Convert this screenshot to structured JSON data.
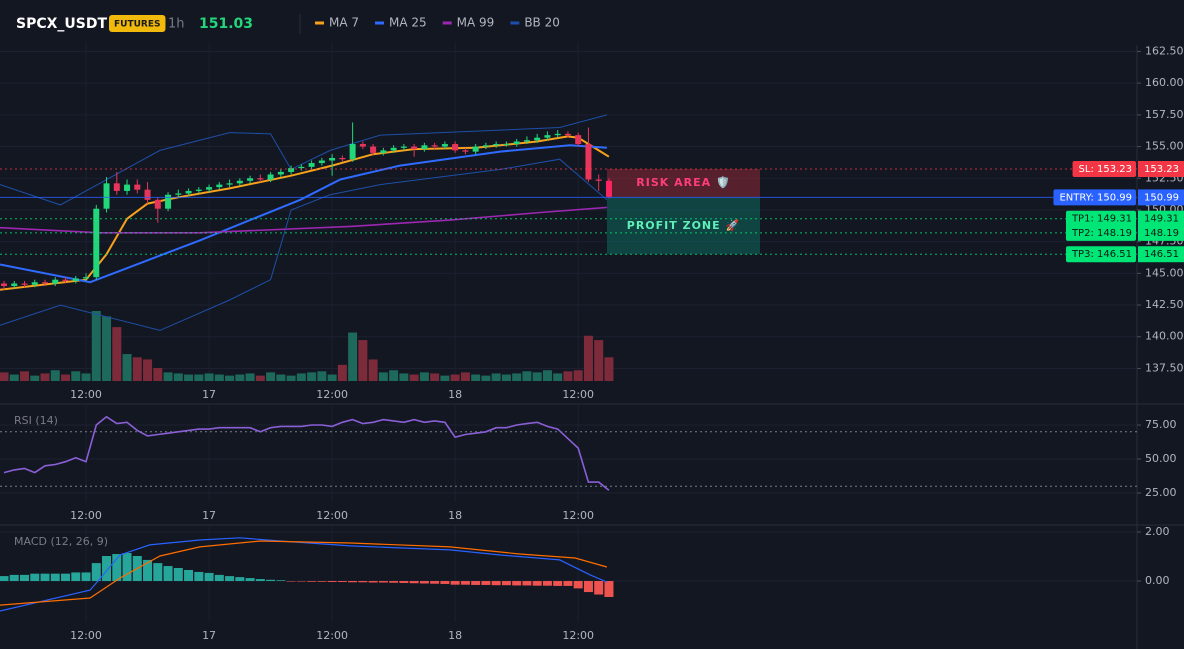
{
  "header": {
    "symbol": "SPCX_USDT",
    "badge": "FUTURES",
    "interval": "1h",
    "price": 151.03
  },
  "chart_data": [
    {
      "type": "candlestick",
      "open": [
        144.2,
        144.0,
        144.2,
        144.1,
        144.3,
        144.2,
        144.5,
        144.4,
        144.6,
        144.7,
        150.1,
        152.1,
        151.5,
        152.0,
        151.6,
        150.8,
        150.1,
        151.2,
        151.3,
        151.5,
        151.6,
        151.8,
        152.0,
        152.1,
        152.3,
        152.5,
        152.4,
        152.8,
        153.0,
        153.3,
        153.4,
        153.7,
        153.9,
        154.1,
        154.0,
        155.2,
        155.0,
        154.5,
        154.7,
        154.9,
        155.0,
        154.8,
        155.1,
        155.0,
        155.2,
        154.7,
        154.6,
        155.0,
        155.1,
        155.2,
        155.2,
        155.4,
        155.5,
        155.7,
        155.9,
        156.0,
        155.9,
        155.2,
        152.4,
        152.3
      ],
      "high": [
        144.4,
        144.4,
        144.4,
        144.5,
        144.5,
        144.7,
        144.7,
        144.8,
        145.0,
        150.4,
        152.6,
        153.0,
        152.4,
        152.4,
        152.2,
        151.0,
        151.4,
        151.6,
        151.7,
        151.8,
        152.0,
        152.2,
        152.4,
        152.5,
        152.7,
        152.8,
        153.0,
        153.2,
        153.5,
        153.6,
        153.9,
        154.1,
        154.4,
        154.3,
        156.9,
        155.4,
        155.2,
        154.9,
        155.1,
        155.2,
        155.2,
        155.3,
        155.3,
        155.4,
        155.4,
        154.9,
        155.2,
        155.3,
        155.4,
        155.4,
        155.6,
        155.8,
        156.0,
        156.2,
        156.3,
        156.2,
        156.1,
        156.5,
        152.8,
        152.5
      ],
      "low": [
        143.7,
        143.8,
        143.9,
        143.9,
        144.0,
        144.0,
        144.2,
        144.2,
        144.4,
        144.5,
        149.8,
        151.2,
        151.2,
        151.3,
        150.5,
        149.0,
        149.9,
        151.0,
        151.1,
        151.3,
        151.4,
        151.6,
        151.8,
        151.9,
        152.1,
        152.2,
        152.2,
        152.6,
        152.8,
        153.1,
        153.2,
        153.5,
        152.7,
        153.8,
        153.8,
        154.8,
        154.3,
        154.3,
        154.5,
        154.7,
        154.2,
        154.6,
        154.8,
        154.8,
        154.5,
        154.4,
        154.4,
        154.8,
        154.9,
        155.0,
        155.0,
        155.2,
        155.3,
        155.5,
        155.7,
        155.7,
        155.0,
        152.2,
        151.5,
        150.9
      ],
      "close": [
        144.0,
        144.2,
        144.1,
        144.3,
        144.2,
        144.5,
        144.4,
        144.6,
        144.7,
        150.1,
        152.1,
        151.5,
        152.0,
        151.6,
        150.8,
        150.1,
        151.2,
        151.3,
        151.5,
        151.6,
        151.8,
        152.0,
        152.1,
        152.3,
        152.5,
        152.4,
        152.8,
        153.0,
        153.3,
        153.4,
        153.7,
        153.9,
        154.1,
        154.0,
        155.2,
        155.0,
        154.5,
        154.7,
        154.9,
        155.0,
        154.8,
        155.1,
        155.0,
        155.2,
        154.7,
        154.6,
        155.0,
        155.1,
        155.2,
        155.2,
        155.4,
        155.5,
        155.7,
        155.9,
        156.0,
        155.9,
        155.2,
        152.4,
        152.3,
        151.03
      ],
      "up_color": "#22d67a",
      "down_color": "#e8355a",
      "last_color": "#ff1f6b",
      "volume": [
        8,
        6,
        9,
        5,
        7,
        10,
        6,
        9,
        7,
        65,
        60,
        50,
        25,
        22,
        20,
        12,
        8,
        7,
        6,
        6,
        7,
        6,
        5,
        6,
        7,
        5,
        8,
        6,
        5,
        7,
        8,
        9,
        6,
        15,
        45,
        38,
        20,
        8,
        10,
        7,
        6,
        8,
        7,
        5,
        6,
        8,
        6,
        5,
        7,
        6,
        7,
        9,
        8,
        10,
        7,
        9,
        10,
        42,
        38,
        22
      ],
      "volume_colors": [
        "#1d6a5c",
        "#7d2b3b"
      ],
      "series": [
        {
          "name": "MA 7",
          "color": "#f7a21b",
          "x": [
            -0.39,
            8,
            10,
            12,
            14,
            17,
            22,
            28,
            32,
            36,
            40,
            46,
            52,
            55,
            56,
            58,
            59
          ],
          "values": [
            143.7,
            144.5,
            146.5,
            149.3,
            150.5,
            151.0,
            151.7,
            152.7,
            153.5,
            154.4,
            154.8,
            154.9,
            155.4,
            155.8,
            155.7,
            154.7,
            154.2
          ]
        },
        {
          "name": "MA 25",
          "color": "#2f6bff",
          "x": [
            -0.39,
            8.4,
            19.1,
            28.9,
            32.8,
            38.6,
            48.4,
            55.2,
            58.8
          ],
          "values": [
            145.7,
            144.3,
            147.6,
            150.8,
            152.4,
            153.5,
            154.6,
            155.1,
            154.9
          ]
        },
        {
          "name": "MA 99",
          "color": "#9c27b0",
          "x": [
            -0.39,
            9.4,
            19.1,
            33.8,
            43.5,
            52.3,
            58.8
          ],
          "values": [
            148.6,
            148.2,
            148.2,
            148.7,
            149.2,
            149.8,
            150.2
          ]
        },
        {
          "name": "BB 20",
          "color": "#1e4fa8",
          "x": [
            -0.39,
            5.5,
            15.2,
            22,
            26,
            28,
            31.8,
            36.7,
            48.4,
            54.2,
            58.8
          ],
          "upper": [
            152.0,
            150.4,
            154.7,
            156.1,
            156.0,
            153.2,
            154.7,
            155.9,
            156.3,
            156.5,
            157.5
          ],
          "lower": [
            140.9,
            142.5,
            140.5,
            142.9,
            144.5,
            150.0,
            151.2,
            152.0,
            153.2,
            154.0,
            150.8
          ]
        }
      ],
      "xlim": [
        -0.39,
        110.5
      ],
      "ylim": [
        136.51,
        163.01
      ],
      "yticks": [
        {
          "value": 137.5,
          "label": "137.50"
        },
        {
          "value": 140,
          "label": "140.00"
        },
        {
          "value": 142.5,
          "label": "142.50"
        },
        {
          "value": 145,
          "label": "145.00"
        },
        {
          "value": 147.5,
          "label": "147.50"
        },
        {
          "value": 150,
          "label": "150.00"
        },
        {
          "value": 152.5,
          "label": "152.50"
        },
        {
          "value": 155,
          "label": "155.00"
        },
        {
          "value": 157.5,
          "label": "157.50"
        },
        {
          "value": 160,
          "label": "160.00"
        },
        {
          "value": 162.5,
          "label": "162.50"
        }
      ],
      "xticks": [
        {
          "value": 8,
          "label": "12:00"
        },
        {
          "value": 20,
          "label": "17"
        },
        {
          "value": 32,
          "label": "12:00"
        },
        {
          "value": 44,
          "label": "18"
        },
        {
          "value": 56,
          "label": "12:00"
        }
      ],
      "levels": [
        {
          "label": "SL: 153.23",
          "value": 153.23,
          "color": "#f23645",
          "text_color": "#ffffff",
          "style": "dotted"
        },
        {
          "label": "ENTRY: 150.99",
          "value": 150.99,
          "color": "#2962ff",
          "text_color": "#ffffff",
          "style": "solid"
        },
        {
          "label": "TP1: 149.31",
          "value": 149.31,
          "color": "#00e676",
          "text_color": "#0b1a12",
          "style": "dotted"
        },
        {
          "label": "TP2: 148.19",
          "value": 148.19,
          "color": "#00e676",
          "text_color": "#0b1a12",
          "style": "dotted"
        },
        {
          "label": "TP3: 146.51",
          "value": 146.51,
          "color": "#00e676",
          "text_color": "#0b1a12",
          "style": "dotted"
        }
      ],
      "zones": [
        {
          "label": "RISK AREA 🛡️",
          "color": "#f23645",
          "text_color": "#ff3d7a"
        },
        {
          "label": "PROFIT ZONE 🚀",
          "color": "#089981",
          "text_color": "#5ff0b8"
        }
      ]
    },
    {
      "type": "line",
      "title": "RSI (14)",
      "color": "#8a5fd6",
      "values": [
        40,
        42,
        43,
        40,
        45,
        46,
        48,
        51,
        48,
        75,
        81,
        76,
        77,
        71,
        67,
        68,
        69,
        70,
        71,
        72,
        72,
        73,
        73,
        73,
        73,
        70,
        73,
        74,
        74,
        74,
        75,
        75,
        74,
        77,
        79,
        76,
        77,
        79,
        78,
        77,
        79,
        77,
        78,
        77,
        66,
        68,
        69,
        70,
        73,
        73,
        75,
        76,
        77,
        74,
        72,
        65,
        58,
        33,
        33,
        27
      ],
      "levels": [
        70,
        30
      ],
      "xlim": [
        -0.39,
        110.5
      ],
      "ylim": [
        18.4,
        87.5
      ],
      "yticks": [
        {
          "value": 25,
          "label": "25.00"
        },
        {
          "value": 50,
          "label": "50.00"
        },
        {
          "value": 75,
          "label": "75.00"
        }
      ],
      "xticks": [
        {
          "value": 8,
          "label": "12:00"
        },
        {
          "value": 20,
          "label": "17"
        },
        {
          "value": 32,
          "label": "12:00"
        },
        {
          "value": 44,
          "label": "18"
        },
        {
          "value": 56,
          "label": "12:00"
        }
      ]
    },
    {
      "type": "macd",
      "title": "MACD (12, 26, 9)",
      "histogram": [
        0.2,
        0.25,
        0.25,
        0.3,
        0.3,
        0.3,
        0.3,
        0.35,
        0.35,
        0.73,
        1.02,
        1.1,
        1.14,
        1.02,
        0.86,
        0.73,
        0.61,
        0.53,
        0.45,
        0.37,
        0.33,
        0.25,
        0.2,
        0.16,
        0.12,
        0.08,
        0.05,
        0.03,
        -0.01,
        -0.02,
        -0.03,
        -0.03,
        -0.04,
        -0.04,
        -0.05,
        -0.05,
        -0.06,
        -0.06,
        -0.07,
        -0.08,
        -0.09,
        -0.1,
        -0.11,
        -0.12,
        -0.15,
        -0.15,
        -0.16,
        -0.16,
        -0.17,
        -0.17,
        -0.18,
        -0.18,
        -0.19,
        -0.19,
        -0.2,
        -0.2,
        -0.3,
        -0.45,
        -0.55,
        -0.65
      ],
      "histogram_colors": [
        "#26a69a",
        "#ef5350"
      ],
      "series": [
        {
          "color": "#2962ff",
          "x": [
            -0.39,
            8.4,
            9.4,
            11.3,
            14.2,
            19.1,
            23,
            26.9,
            33.8,
            43.5,
            48.4,
            54.2,
            57.2,
            58.8
          ],
          "values": [
            -1.22,
            -0.37,
            0.12,
            1.06,
            1.47,
            1.67,
            1.76,
            1.63,
            1.43,
            1.27,
            1.06,
            0.86,
            0.24,
            -0.04
          ]
        },
        {
          "color": "#ff6d00",
          "x": [
            -0.39,
            8.4,
            11.3,
            15.2,
            19.1,
            25,
            33.8,
            43.5,
            50.3,
            55.7,
            58.8
          ],
          "values": [
            -0.98,
            -0.69,
            0.12,
            1.02,
            1.39,
            1.63,
            1.55,
            1.39,
            1.1,
            0.94,
            0.57
          ]
        }
      ],
      "xlim": [
        -0.39,
        110.5
      ],
      "ylim": [
        -1.67,
        2.12
      ],
      "yticks": [
        {
          "value": 0,
          "label": "0.00"
        },
        {
          "value": 2,
          "label": "2.00"
        }
      ],
      "xticks": [
        {
          "value": 8,
          "label": "12:00"
        },
        {
          "value": 20,
          "label": "17"
        },
        {
          "value": 32,
          "label": "12:00"
        },
        {
          "value": 44,
          "label": "18"
        },
        {
          "value": 56,
          "label": "12:00"
        }
      ]
    }
  ]
}
